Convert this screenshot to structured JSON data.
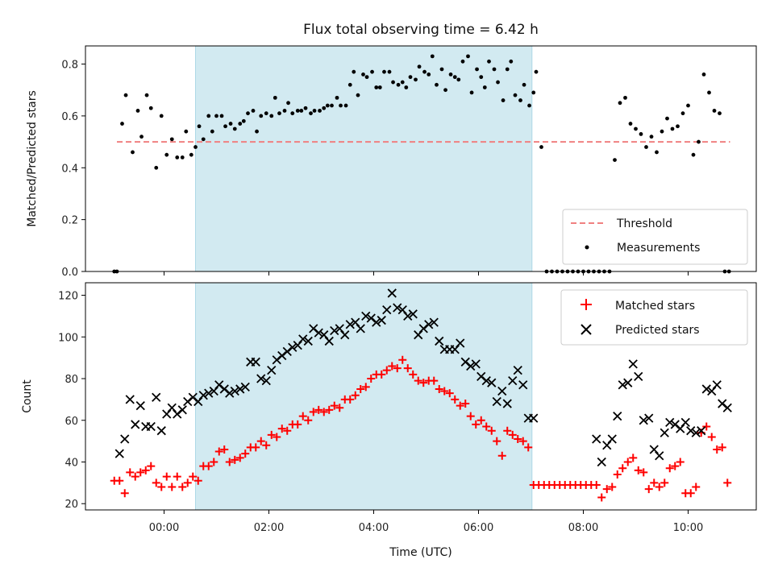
{
  "title": "Flux total observing time = 6.42 h",
  "colors": {
    "shade": "#add8e6",
    "threshold": "#f08080",
    "measurements": "#000000",
    "matched": "#ff0000",
    "predicted": "#000000"
  },
  "chart_data": [
    {
      "type": "scatter",
      "panel": "top",
      "xlabel": "",
      "ylabel": "Matched/Predicted stars",
      "ylim": [
        0,
        0.87
      ],
      "yticks": [
        0.0,
        0.2,
        0.4,
        0.6,
        0.8
      ],
      "ytick_labels": [
        "0.0",
        "0.2",
        "0.4",
        "0.6",
        "0.8"
      ],
      "grid": false,
      "legend_placement": "lower-right",
      "shaded_span_hours": [
        0.6,
        7.02
      ],
      "threshold": 0.5,
      "threshold_range_hours": [
        -0.9,
        10.8
      ],
      "legend": [
        "Threshold",
        "Measurements"
      ],
      "series": [
        {
          "name": "Measurements",
          "x": [
            -0.95,
            -0.9,
            -0.8,
            -0.73,
            -0.6,
            -0.5,
            -0.43,
            -0.33,
            -0.25,
            -0.15,
            -0.05,
            0.05,
            0.15,
            0.25,
            0.35,
            0.42,
            0.52,
            0.6,
            0.67,
            0.75,
            0.85,
            0.92,
            1.0,
            1.1,
            1.17,
            1.27,
            1.35,
            1.45,
            1.52,
            1.6,
            1.7,
            1.77,
            1.85,
            1.95,
            2.05,
            2.12,
            2.2,
            2.3,
            2.37,
            2.45,
            2.55,
            2.62,
            2.7,
            2.8,
            2.87,
            2.97,
            3.05,
            3.12,
            3.2,
            3.3,
            3.37,
            3.47,
            3.55,
            3.62,
            3.7,
            3.8,
            3.87,
            3.97,
            4.05,
            4.12,
            4.2,
            4.3,
            4.37,
            4.47,
            4.55,
            4.62,
            4.7,
            4.8,
            4.87,
            4.97,
            5.05,
            5.12,
            5.2,
            5.3,
            5.37,
            5.47,
            5.55,
            5.62,
            5.7,
            5.8,
            5.87,
            5.97,
            6.05,
            6.12,
            6.2,
            6.3,
            6.37,
            6.47,
            6.55,
            6.62,
            6.7,
            6.8,
            6.87,
            6.97,
            7.05,
            7.1,
            7.2,
            7.3,
            7.4,
            7.5,
            7.6,
            7.7,
            7.8,
            7.9,
            8.0,
            8.1,
            8.2,
            8.3,
            8.4,
            8.5,
            8.6,
            8.7,
            8.8,
            8.9,
            9.0,
            9.1,
            9.2,
            9.3,
            9.4,
            9.5,
            9.6,
            9.7,
            9.8,
            9.9,
            10.0,
            10.1,
            10.2,
            10.3,
            10.4,
            10.5,
            10.6,
            10.7,
            10.78
          ],
          "y": [
            0.0,
            0.0,
            0.57,
            0.68,
            0.46,
            0.62,
            0.52,
            0.68,
            0.63,
            0.4,
            0.6,
            0.45,
            0.51,
            0.44,
            0.44,
            0.54,
            0.45,
            0.48,
            0.56,
            0.51,
            0.6,
            0.54,
            0.6,
            0.6,
            0.56,
            0.57,
            0.55,
            0.57,
            0.58,
            0.61,
            0.62,
            0.54,
            0.6,
            0.61,
            0.6,
            0.67,
            0.61,
            0.62,
            0.65,
            0.61,
            0.62,
            0.62,
            0.63,
            0.61,
            0.62,
            0.62,
            0.63,
            0.64,
            0.64,
            0.67,
            0.64,
            0.64,
            0.72,
            0.77,
            0.68,
            0.76,
            0.75,
            0.77,
            0.71,
            0.71,
            0.77,
            0.77,
            0.73,
            0.72,
            0.73,
            0.71,
            0.75,
            0.74,
            0.79,
            0.77,
            0.76,
            0.83,
            0.72,
            0.78,
            0.7,
            0.76,
            0.75,
            0.74,
            0.81,
            0.83,
            0.69,
            0.78,
            0.75,
            0.71,
            0.81,
            0.78,
            0.73,
            0.66,
            0.78,
            0.81,
            0.68,
            0.66,
            0.72,
            0.64,
            0.69,
            0.77,
            0.48,
            0.0,
            0.0,
            0.0,
            0.0,
            0.0,
            0.0,
            0.0,
            0.0,
            0.0,
            0.0,
            0.0,
            0.0,
            0.0,
            0.43,
            0.65,
            0.67,
            0.57,
            0.55,
            0.53,
            0.48,
            0.52,
            0.46,
            0.54,
            0.59,
            0.55,
            0.56,
            0.61,
            0.64,
            0.45,
            0.5,
            0.76,
            0.69,
            0.62,
            0.61,
            0.0,
            0.0
          ]
        }
      ]
    },
    {
      "type": "scatter",
      "panel": "bottom",
      "xlabel": "Time (UTC)",
      "ylabel": "Count",
      "ylim": [
        17,
        126
      ],
      "yticks": [
        20,
        40,
        60,
        80,
        100,
        120
      ],
      "ytick_labels": [
        "20",
        "40",
        "60",
        "80",
        "100",
        "120"
      ],
      "xlim_hours": [
        -1.5,
        11.3
      ],
      "xticks_hours": [
        0,
        2,
        4,
        6,
        8,
        10
      ],
      "xtick_labels": [
        "00:00",
        "02:00",
        "04:00",
        "06:00",
        "08:00",
        "10:00"
      ],
      "grid": false,
      "legend_placement": "top-right",
      "shaded_span_hours": [
        0.6,
        7.02
      ],
      "legend": [
        "Matched stars",
        "Predicted stars"
      ],
      "series": [
        {
          "name": "Matched stars",
          "marker": "+",
          "x": [
            -0.95,
            -0.85,
            -0.75,
            -0.65,
            -0.55,
            -0.45,
            -0.35,
            -0.25,
            -0.15,
            -0.05,
            0.05,
            0.15,
            0.25,
            0.35,
            0.45,
            0.55,
            0.65,
            0.75,
            0.85,
            0.95,
            1.05,
            1.15,
            1.25,
            1.35,
            1.45,
            1.55,
            1.65,
            1.75,
            1.85,
            1.95,
            2.05,
            2.15,
            2.25,
            2.35,
            2.45,
            2.55,
            2.65,
            2.75,
            2.85,
            2.95,
            3.05,
            3.15,
            3.25,
            3.35,
            3.45,
            3.55,
            3.65,
            3.75,
            3.85,
            3.95,
            4.05,
            4.15,
            4.25,
            4.35,
            4.45,
            4.55,
            4.65,
            4.75,
            4.85,
            4.95,
            5.05,
            5.15,
            5.25,
            5.35,
            5.45,
            5.55,
            5.65,
            5.75,
            5.85,
            5.95,
            6.05,
            6.15,
            6.25,
            6.35,
            6.45,
            6.55,
            6.65,
            6.75,
            6.85,
            6.95,
            7.05,
            7.15,
            7.25,
            7.35,
            7.45,
            7.55,
            7.65,
            7.75,
            7.85,
            7.95,
            8.05,
            8.15,
            8.25,
            8.35,
            8.45,
            8.55,
            8.65,
            8.75,
            8.85,
            8.95,
            9.05,
            9.15,
            9.25,
            9.35,
            9.45,
            9.55,
            9.65,
            9.75,
            9.85,
            9.95,
            10.05,
            10.15,
            10.25,
            10.35,
            10.45,
            10.55,
            10.65,
            10.75
          ],
          "y": [
            31,
            31,
            25,
            35,
            33,
            35,
            36,
            38,
            30,
            28,
            33,
            28,
            33,
            28,
            30,
            33,
            31,
            38,
            38,
            40,
            45,
            46,
            40,
            41,
            42,
            44,
            47,
            47,
            50,
            48,
            53,
            52,
            56,
            55,
            58,
            58,
            62,
            60,
            64,
            65,
            64,
            65,
            67,
            66,
            70,
            70,
            72,
            75,
            76,
            80,
            82,
            82,
            84,
            86,
            85,
            89,
            85,
            82,
            79,
            78,
            79,
            79,
            75,
            74,
            73,
            70,
            67,
            68,
            62,
            58,
            60,
            57,
            55,
            50,
            43,
            55,
            53,
            51,
            50,
            47,
            29,
            29,
            29,
            29,
            29,
            29,
            29,
            29,
            29,
            29,
            29,
            29,
            29,
            23,
            27,
            28,
            34,
            37,
            40,
            42,
            36,
            35,
            27,
            30,
            28,
            30,
            37,
            38,
            40,
            25,
            25,
            28,
            54,
            57,
            52,
            46,
            47,
            30
          ]
        },
        {
          "name": "Predicted stars",
          "marker": "x",
          "x": [
            -0.85,
            -0.75,
            -0.65,
            -0.55,
            -0.45,
            -0.35,
            -0.25,
            -0.15,
            -0.05,
            0.05,
            0.15,
            0.25,
            0.35,
            0.45,
            0.55,
            0.65,
            0.75,
            0.85,
            0.95,
            1.05,
            1.15,
            1.25,
            1.35,
            1.45,
            1.55,
            1.65,
            1.75,
            1.85,
            1.95,
            2.05,
            2.15,
            2.25,
            2.35,
            2.45,
            2.55,
            2.65,
            2.75,
            2.85,
            2.95,
            3.05,
            3.15,
            3.25,
            3.35,
            3.45,
            3.55,
            3.65,
            3.75,
            3.85,
            3.95,
            4.05,
            4.15,
            4.25,
            4.35,
            4.45,
            4.55,
            4.65,
            4.75,
            4.85,
            4.95,
            5.05,
            5.15,
            5.25,
            5.35,
            5.45,
            5.55,
            5.65,
            5.75,
            5.85,
            5.95,
            6.05,
            6.15,
            6.25,
            6.35,
            6.45,
            6.55,
            6.65,
            6.75,
            6.85,
            6.95,
            7.05,
            8.25,
            8.35,
            8.45,
            8.55,
            8.65,
            8.75,
            8.85,
            8.95,
            9.05,
            9.15,
            9.25,
            9.35,
            9.45,
            9.55,
            9.65,
            9.75,
            9.85,
            9.95,
            10.05,
            10.15,
            10.25,
            10.35,
            10.45,
            10.55,
            10.65,
            10.75
          ],
          "y": [
            44,
            51,
            70,
            58,
            67,
            57,
            57,
            71,
            55,
            63,
            66,
            63,
            65,
            69,
            71,
            69,
            72,
            73,
            74,
            77,
            75,
            73,
            74,
            75,
            76,
            88,
            88,
            80,
            79,
            84,
            89,
            91,
            93,
            95,
            96,
            99,
            98,
            104,
            102,
            101,
            98,
            103,
            104,
            101,
            106,
            107,
            104,
            110,
            109,
            107,
            108,
            113,
            121,
            114,
            113,
            110,
            111,
            101,
            104,
            106,
            107,
            98,
            94,
            94,
            94,
            97,
            88,
            86,
            87,
            81,
            79,
            78,
            69,
            74,
            68,
            79,
            84,
            77,
            61,
            61,
            51,
            40,
            48,
            51,
            62,
            77,
            78,
            87,
            81,
            60,
            61,
            46,
            43,
            54,
            59,
            58,
            56,
            59,
            55,
            54,
            55,
            75,
            74,
            77,
            68,
            66
          ]
        }
      ]
    }
  ]
}
